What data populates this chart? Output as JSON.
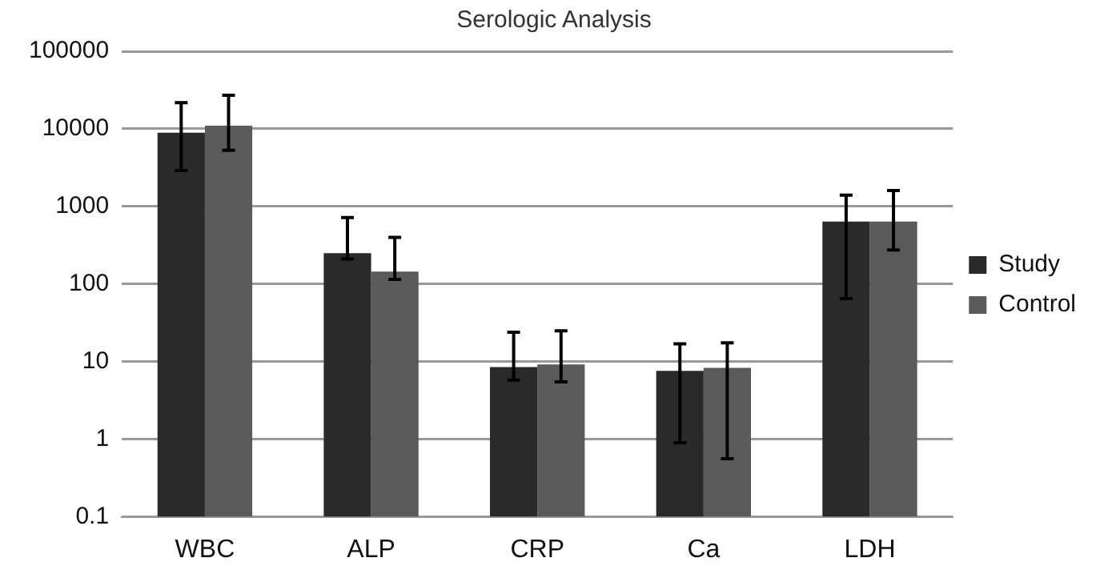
{
  "chart_data": {
    "type": "bar",
    "title": "Serologic Analysis",
    "categories": [
      "WBC",
      "ALP",
      "CRP",
      "Ca",
      "LDH"
    ],
    "series": [
      {
        "name": "Study",
        "color": "#2a2a2a",
        "values": [
          8900,
          250,
          8.5,
          7.6,
          640
        ],
        "errors": [
          [
            2900,
            21800
          ],
          [
            210,
            720
          ],
          [
            5.8,
            24
          ],
          [
            0.9,
            17
          ],
          [
            65,
            1400
          ]
        ]
      },
      {
        "name": "Control",
        "color": "#5a5a5a",
        "values": [
          11000,
          145,
          9.2,
          8.3,
          640
        ],
        "errors": [
          [
            5300,
            27000
          ],
          [
            115,
            400
          ],
          [
            5.5,
            25
          ],
          [
            0.56,
            17.5
          ],
          [
            275,
            1600
          ]
        ]
      }
    ],
    "log": "y",
    "ylim": [
      0.1,
      100000
    ],
    "yticks": [
      0.1,
      1,
      10,
      100,
      1000,
      10000,
      100000
    ],
    "grid": "y",
    "legend": "right"
  }
}
